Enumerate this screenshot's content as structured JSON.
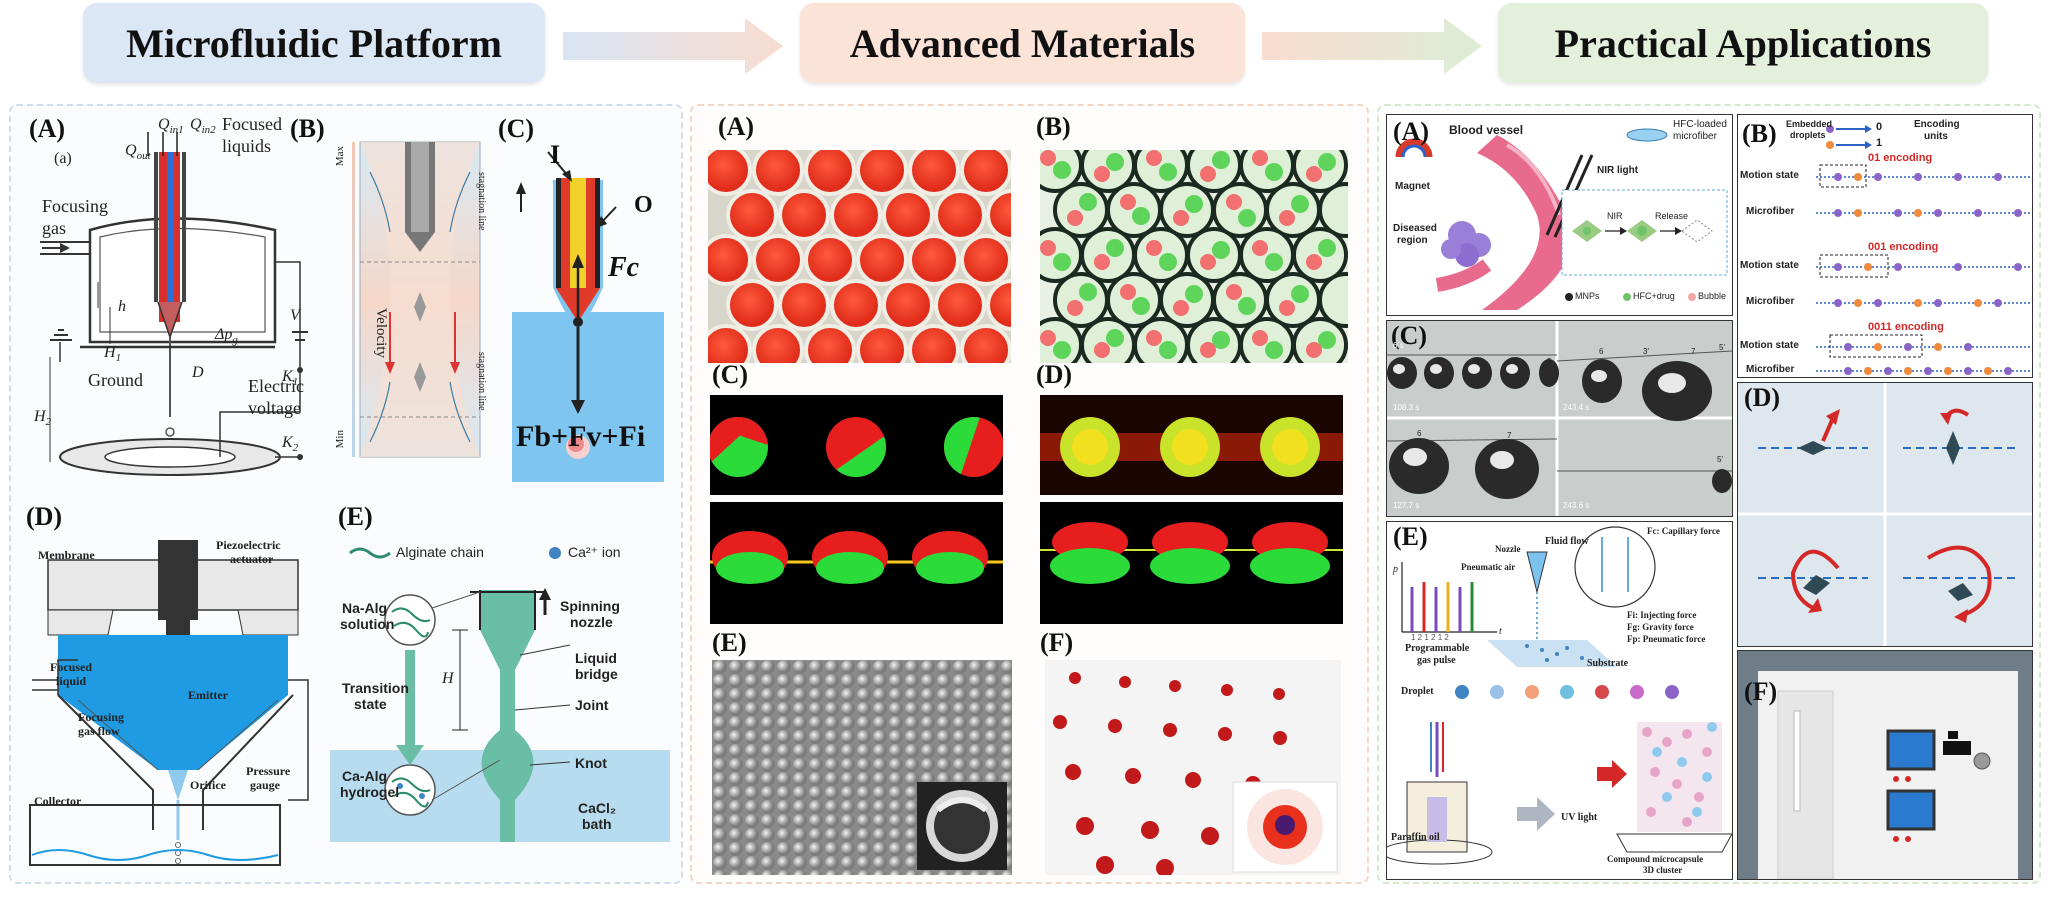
{
  "header": {
    "stage1": "Microfluidic Platform",
    "stage2": "Advanced Materials",
    "stage3": "Practical Applications",
    "colors": {
      "stage1": "#dbe7f5",
      "stage2": "#fbe3d8",
      "stage3": "#e2f0dc"
    }
  },
  "platform": {
    "A": {
      "label": "(A)",
      "sub": "(a)",
      "q_in1": "Q",
      "q_in1_sub": "in1",
      "q_in2": "Q",
      "q_in2_sub": "in2",
      "q_out": "Q",
      "q_out_sub": "out",
      "focused": "Focused",
      "liquids": "liquids",
      "focusing": "Focusing",
      "gas": "gas",
      "h": "h",
      "h1": "H",
      "h1_sub": "1",
      "h2": "H",
      "h2_sub": "2",
      "dpg": "Δp",
      "dpg_sub": "g",
      "v": "V",
      "ground": "Ground",
      "d": "D",
      "k1": "K",
      "k1_sub": "1",
      "k2": "K",
      "k2_sub": "2",
      "electric": "Electric",
      "voltage": "voltage"
    },
    "B": {
      "label": "(B)",
      "max": "Max",
      "min": "Min",
      "velocity": "Velocity",
      "stag1": "stagnation line",
      "stag2": "stagnation line"
    },
    "C": {
      "label": "(C)",
      "i": "I",
      "o": "O",
      "fc": "Fc",
      "forces": "Fb+Fv+Fi"
    },
    "D": {
      "label": "(D)",
      "membrane": "Membrane",
      "piezo1": "Piezoelectric",
      "piezo2": "actuator",
      "focused1": "Focused",
      "focused2": "liquid",
      "emitter": "Emitter",
      "focusing1": "Focusing",
      "focusing2": "gas flow",
      "orifice": "Orifice",
      "pressure1": "Pressure",
      "pressure2": "gauge",
      "collector": "Collector"
    },
    "E": {
      "label": "(E)",
      "alg": "Alginate chain",
      "ca": "Ca²⁺ ion",
      "naalg1": "Na-Alg",
      "naalg2": "solution",
      "spin1": "Spinning",
      "spin2": "nozzle",
      "trans1": "Transition",
      "trans2": "state",
      "bridge1": "Liquid",
      "bridge2": "bridge",
      "joint": "Joint",
      "h": "H",
      "caalg1": "Ca-Alg",
      "caalg2": "hydrogel",
      "knot": "Knot",
      "cacl1": "CaCl₂",
      "cacl2": "bath"
    }
  },
  "materials": {
    "A": "(A)",
    "B": "(B)",
    "C": "(C)",
    "D": "(D)",
    "E": "(E)",
    "F": "(F)"
  },
  "applications": {
    "A": {
      "label": "(A)",
      "blood": "Blood vessel",
      "hfc1": "HFC-loaded",
      "hfc2": "microfiber",
      "nir_light": "NIR light",
      "magnet": "Magnet",
      "diseased1": "Diseased",
      "diseased2": "region",
      "nir": "NIR",
      "release": "Release",
      "legend_mnp": "MNPs",
      "legend_hfc": "HFC+drug",
      "legend_bubble": "Bubble"
    },
    "B": {
      "label": "(B)",
      "embedded1": "Embedded",
      "embedded2": "droplets",
      "zero": "0",
      "one": "1",
      "units1": "Encoding",
      "units2": "units",
      "enc1": "01 encoding",
      "enc2": "001 encoding",
      "enc3": "0011 encoding",
      "motion": "Motion state",
      "microfiber": "Microfiber"
    },
    "C": {
      "label": "(C)",
      "t1": "6 s",
      "t2": "108.3 s",
      "t3": "127.7 s",
      "t4": "243.4 s",
      "t5": "243.6 s",
      "n1": "1",
      "n2": "2",
      "n3": "3",
      "n4": "4",
      "n5": "5",
      "n6": "6",
      "n7": "7",
      "n3p": "3'",
      "n5p": "5'"
    },
    "D": {
      "label": "(D)"
    },
    "E": {
      "label": "(E)",
      "fluid": "Fluid flow",
      "nozzle": "Nozzle",
      "pneumatic": "Pneumatic air",
      "p": "p",
      "t": "t",
      "prog1": "Programmable",
      "prog2": "gas pulse",
      "substrate": "Substrate",
      "droplet": "Droplet",
      "paraffin": "Paraffin oil",
      "uv": "UV light",
      "compound1": "Compound microcapsule",
      "compound2": "3D cluster",
      "fc": "Fc: Capillary force",
      "fi": "Fi: Injecting force",
      "fg": "Fg: Gravity force",
      "fp": "Fp: Pneumatic force",
      "pulse_nums": "1 2 1 2 1 2"
    },
    "F": {
      "label": "(F)"
    }
  }
}
